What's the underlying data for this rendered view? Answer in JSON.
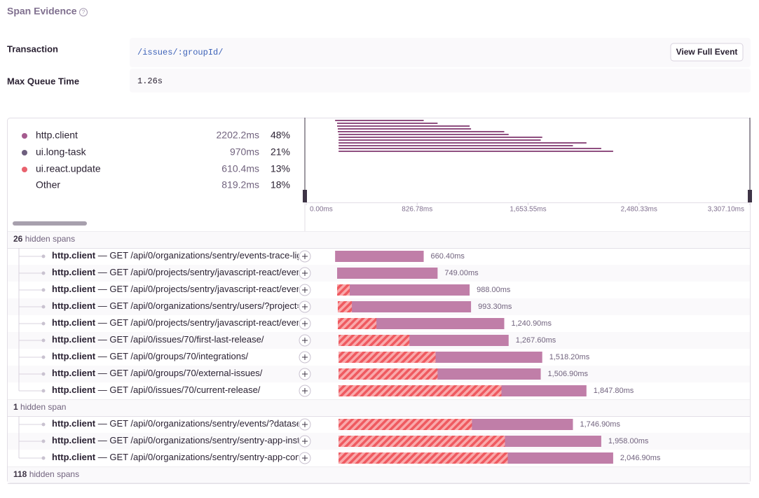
{
  "header": {
    "title": "Span Evidence"
  },
  "evidence": [
    {
      "label": "Transaction",
      "value": "/issues/:groupId/",
      "button": "View Full Event"
    },
    {
      "label": "Max Queue Time",
      "value": "1.26s"
    }
  ],
  "breakdown": [
    {
      "name": "http.client",
      "duration": "2202.2ms",
      "percent": "48%",
      "color": "#a55b8f"
    },
    {
      "name": "ui.long-task",
      "duration": "970ms",
      "percent": "21%",
      "color": "#6e5f7e"
    },
    {
      "name": "ui.react.update",
      "duration": "610.4ms",
      "percent": "13%",
      "color": "#e9626e"
    },
    {
      "name": "Other",
      "duration": "819.2ms",
      "percent": "18%"
    }
  ],
  "timeline": {
    "xlim": [
      0,
      3307.1
    ],
    "xticks": [
      {
        "value": 0,
        "label": "0.00ms"
      },
      {
        "value": 826.78,
        "label": "826.78ms"
      },
      {
        "value": 1653.55,
        "label": "1,653.55ms"
      },
      {
        "value": 2480.33,
        "label": "2,480.33ms"
      },
      {
        "value": 3307.1,
        "label": "3,307.10ms"
      }
    ]
  },
  "sections": [
    {
      "hidden_count": 26,
      "hidden_label": "hidden spans",
      "spans": [
        {
          "op": "http.client",
          "description": "— GET /api/0/organizations/sentry/events-trace-lig",
          "start": 215,
          "duration": 660.4,
          "queue": 0,
          "duration_label": "660.40ms"
        },
        {
          "op": "http.client",
          "description": "— GET /api/0/projects/sentry/javascript-react/ever",
          "start": 230,
          "duration": 749,
          "queue": 0,
          "duration_label": "749.00ms"
        },
        {
          "op": "http.client",
          "description": "— GET /api/0/projects/sentry/javascript-react/ever",
          "start": 230,
          "duration": 988,
          "queue": 94,
          "duration_label": "988.00ms"
        },
        {
          "op": "http.client",
          "description": "— GET /api/0/organizations/sentry/users/?project=",
          "start": 235,
          "duration": 993.3,
          "queue": 105,
          "duration_label": "993.30ms"
        },
        {
          "op": "http.client",
          "description": "— GET /api/0/projects/sentry/javascript-react/ever",
          "start": 235,
          "duration": 1240.9,
          "queue": 288,
          "duration_label": "1,240.90ms"
        },
        {
          "op": "http.client",
          "description": "— GET /api/0/issues/70/first-last-release/",
          "start": 241,
          "duration": 1267.6,
          "queue": 528,
          "duration_label": "1,267.60ms"
        },
        {
          "op": "http.client",
          "description": "— GET /api/0/groups/70/integrations/",
          "start": 241,
          "duration": 1518.2,
          "queue": 723,
          "duration_label": "1,518.20ms"
        },
        {
          "op": "http.client",
          "description": "— GET /api/0/groups/70/external-issues/",
          "start": 241,
          "duration": 1506.9,
          "queue": 738,
          "duration_label": "1,506.90ms"
        },
        {
          "op": "http.client",
          "description": "— GET /api/0/issues/70/current-release/",
          "start": 241,
          "duration": 1847.8,
          "queue": 1214,
          "duration_label": "1,847.80ms"
        }
      ]
    },
    {
      "hidden_count": 1,
      "hidden_label": "hidden span",
      "spans": [
        {
          "op": "http.client",
          "description": "— GET /api/0/organizations/sentry/events/?dataset",
          "start": 241,
          "duration": 1746.9,
          "queue": 994,
          "duration_label": "1,746.90ms"
        },
        {
          "op": "http.client",
          "description": "— GET /api/0/organizations/sentry/sentry-app-inst",
          "start": 241,
          "duration": 1958,
          "queue": 1240,
          "duration_label": "1,958.00ms"
        },
        {
          "op": "http.client",
          "description": "— GET /api/0/organizations/sentry/sentry-app-com",
          "start": 241,
          "duration": 2046.9,
          "queue": 1261,
          "duration_label": "2,046.90ms"
        }
      ]
    },
    {
      "hidden_count": 118,
      "hidden_label": "hidden spans",
      "spans": []
    }
  ]
}
